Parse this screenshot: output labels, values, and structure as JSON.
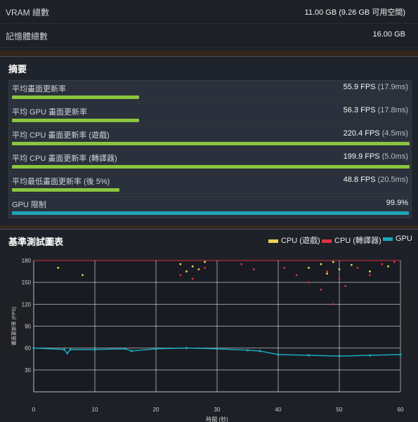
{
  "specs": [
    {
      "label": "VRAM 總數",
      "value": "11.00 GB (9.26 GB 可用空間)"
    },
    {
      "label": "記憶體總數",
      "value": "16.00 GB"
    }
  ],
  "summary": {
    "title": "摘要",
    "rows": [
      {
        "label": "平均畫面更新率",
        "value": "55.9 FPS",
        "sub": "(17.9ms)",
        "fill": 0.32,
        "color": "#8bc53f"
      },
      {
        "label": "平均 GPU 畫面更新率",
        "value": "56.3 FPS",
        "sub": "(17.8ms)",
        "fill": 0.32,
        "color": "#8bc53f"
      },
      {
        "label": "平均 CPU 畫面更新率 (遊戲)",
        "value": "220.4 FPS",
        "sub": "(4.5ms)",
        "fill": 1.0,
        "color": "#8bc53f"
      },
      {
        "label": "平均 CPU 畫面更新率 (轉譯器)",
        "value": "199.9 FPS",
        "sub": "(5.0ms)",
        "fill": 1.0,
        "color": "#8bc53f"
      },
      {
        "label": "平均最低畫面更新率 (後 5%)",
        "value": "48.8 FPS",
        "sub": "(20.5ms)",
        "fill": 0.27,
        "color": "#8bc53f"
      },
      {
        "label": "GPU 限制",
        "value": "99.9%",
        "sub": "",
        "fill": 0.999,
        "color": "#1fa5b8"
      }
    ]
  },
  "graph": {
    "title": "基準測試圖表",
    "legend": [
      {
        "name": "CPU (遊戲)",
        "color": "#f0d050"
      },
      {
        "name": "CPU (轉譯器)",
        "color": "#e03040"
      },
      {
        "name": "GPU",
        "color": "#1aa8c0"
      }
    ]
  },
  "chart_data": {
    "type": "scatter",
    "xlabel": "時間 (秒)",
    "ylabel": "畫面更新率 (FPS)",
    "xlim": [
      0,
      60
    ],
    "ylim": [
      0,
      180
    ],
    "xticks": [
      0,
      10,
      20,
      30,
      40,
      50,
      60
    ],
    "yticks": [
      30,
      60,
      90,
      120,
      150,
      180
    ],
    "grid": true,
    "series": [
      {
        "name": "GPU",
        "x": [
          0,
          5,
          5.5,
          6,
          10,
          15,
          16,
          20,
          25,
          30,
          35,
          37,
          40,
          45,
          50,
          55,
          60
        ],
        "y": [
          60,
          58,
          53,
          58,
          58,
          59,
          56,
          59,
          60,
          59,
          57,
          56,
          51,
          50,
          49,
          50,
          51
        ]
      },
      {
        "name": "CPU (遊戲)",
        "x": [
          4,
          8,
          24,
          25,
          26,
          27,
          28,
          45,
          47,
          48,
          49,
          50,
          52,
          55,
          58
        ],
        "y": [
          170,
          160,
          175,
          165,
          172,
          168,
          178,
          170,
          175,
          162,
          178,
          168,
          174,
          165,
          172
        ]
      },
      {
        "name": "CPU (轉譯器)",
        "x": [
          24,
          26,
          28,
          34,
          36,
          41,
          43,
          45,
          47,
          48,
          49,
          50,
          51,
          53,
          55,
          57,
          59
        ],
        "y": [
          160,
          155,
          170,
          175,
          168,
          170,
          160,
          150,
          140,
          165,
          120,
          155,
          145,
          170,
          160,
          175,
          178
        ]
      }
    ]
  }
}
